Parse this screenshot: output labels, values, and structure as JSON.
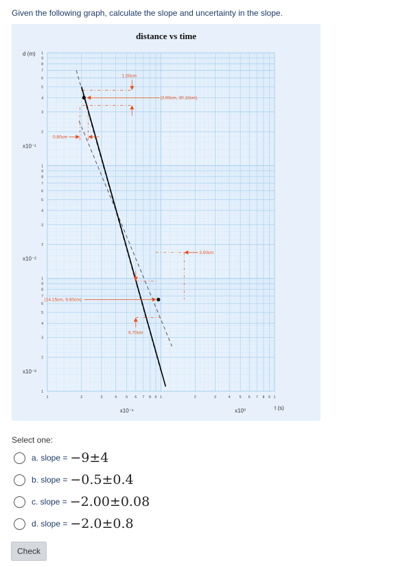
{
  "question": {
    "text": "Given the following graph, calculate the slope and uncertainty in the slope.",
    "select_label": "Select one:",
    "options": [
      {
        "letter": "a. slope = ",
        "value": "−9±4"
      },
      {
        "letter": "b. slope = ",
        "value": "−0.5±0.4"
      },
      {
        "letter": "c. slope = ",
        "value": "−2.00±0.08"
      },
      {
        "letter": "d. slope = ",
        "value": "−2.0±0.8"
      }
    ],
    "check_label": "Check"
  },
  "chart_data": {
    "type": "line",
    "title": "distance vs time",
    "xlabel": "t (s)",
    "ylabel": "d (m)",
    "x_scale": "log",
    "y_scale": "log",
    "x_decade_labels": [
      "x10⁻¹",
      "x10⁰"
    ],
    "y_decade_labels": [
      "x10⁻¹",
      "x10⁻²",
      "x10⁻³"
    ],
    "x_tick_labels": [
      "1",
      "2",
      "3",
      "4",
      "5",
      "6",
      "7",
      "8",
      "9",
      "1",
      "2",
      "3",
      "4",
      "5",
      "6",
      "7",
      "8",
      "9",
      "1"
    ],
    "y_tick_labels_decade": [
      "1",
      "9",
      "8",
      "7",
      "6",
      "5",
      "4",
      "3",
      "2"
    ],
    "grid": true,
    "colors": {
      "best_fit": "#000000",
      "limit_lines": "#444444",
      "annotation": "#e8501e",
      "grid_major": "#a9d0ef",
      "grid_minor": "#d4e7f7"
    },
    "best_fit_line": {
      "from": [
        0.2,
        0.5
      ],
      "to": [
        1.1,
        0.0011
      ]
    },
    "limit_lines": [
      {
        "from": [
          0.18,
          0.7
        ],
        "to": [
          1.0,
          0.0015
        ]
      },
      {
        "from": [
          0.19,
          0.25
        ],
        "to": [
          1.25,
          0.0025
        ]
      }
    ],
    "points": [
      {
        "x": 0.21,
        "y": 0.4,
        "label": "(3.90cm, 30.10cm)"
      },
      {
        "x": 0.95,
        "y": 0.0065,
        "label": "(14.15cm, 9.60cm)"
      }
    ],
    "annotations": [
      "1.50cm",
      "0.80cm",
      "3.50cm",
      "6.70cm"
    ]
  }
}
